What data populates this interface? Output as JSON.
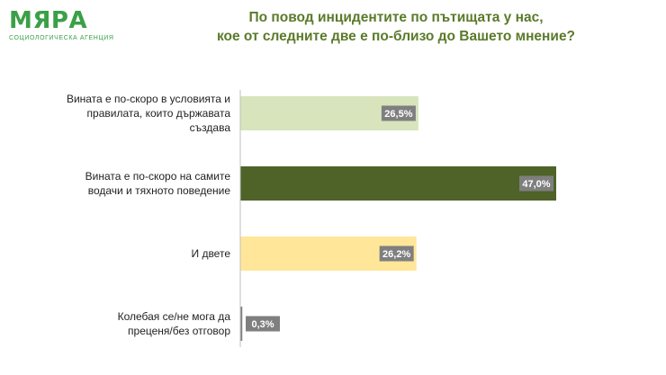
{
  "logo": {
    "word": "МЯРА",
    "subtitle": "СОЦИОЛОГИЧЕСКА АГЕНЦИЯ"
  },
  "chart_data": {
    "type": "bar",
    "orientation": "horizontal",
    "title_lines": [
      "По повод инцидентите по пътищата у нас,",
      "кое от следните две е по-близо до Вашето мнение?"
    ],
    "categories": [
      [
        "Вината е по-скоро в условията и",
        "правилата, които държавата",
        "създава"
      ],
      [
        "Вината е по-скоро на самите",
        "водачи и тяхното поведение"
      ],
      [
        "И двете"
      ],
      [
        "Колебая се/не мога да",
        "преценя/без отговор"
      ]
    ],
    "values": [
      26.5,
      47.0,
      26.2,
      0.3
    ],
    "value_labels": [
      "26,5%",
      "47,0%",
      "26,2%",
      "0,3%"
    ],
    "colors": [
      "#d8e4bc",
      "#4f6228",
      "#ffe699",
      "#7f7f7f"
    ],
    "xlim": [
      0,
      47.0
    ],
    "grid": false,
    "legend": "none",
    "axis": "vertical baseline line at left"
  }
}
